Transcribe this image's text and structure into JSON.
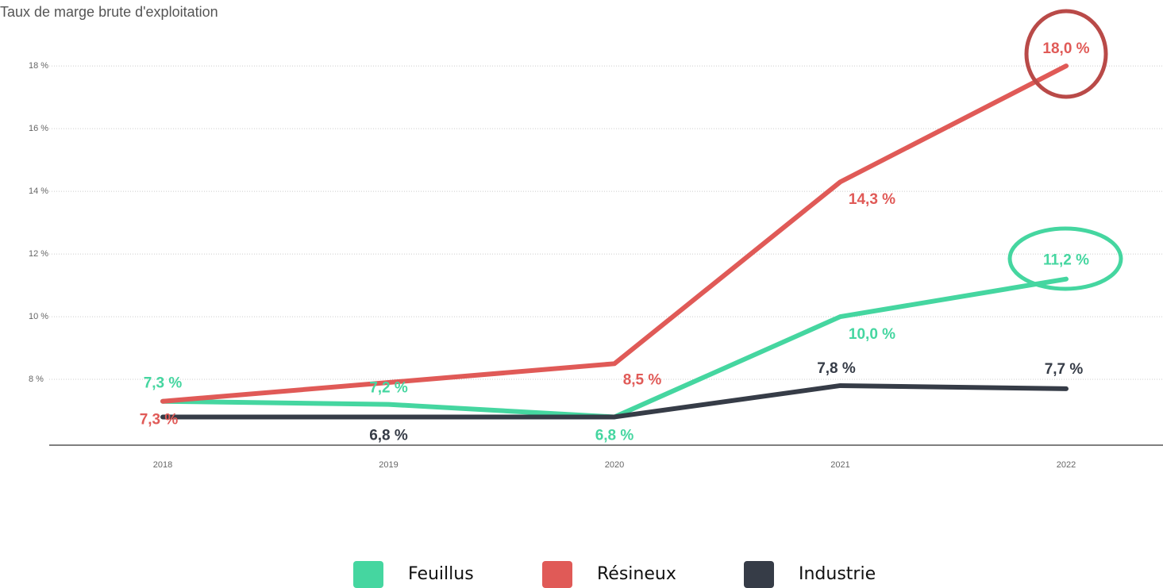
{
  "chart_data": {
    "type": "line",
    "title": "Taux de marge brute d'exploitation",
    "categories": [
      "2018",
      "2019",
      "2020",
      "2021",
      "2022"
    ],
    "series": [
      {
        "name": "Feuillus",
        "color": "#45d6a0",
        "values": [
          7.3,
          7.2,
          6.8,
          10.0,
          11.2
        ],
        "value_labels": [
          "7,3 %",
          "7,2 %",
          "6,8 %",
          "10,0 %",
          "11,2 %"
        ]
      },
      {
        "name": "Résineux",
        "color": "#e05a57",
        "values": [
          7.3,
          7.9,
          8.5,
          14.3,
          18.0
        ],
        "value_labels": [
          "7,3 %",
          null,
          "8,5 %",
          "14,3 %",
          "18,0 %"
        ]
      },
      {
        "name": "Industrie",
        "color": "#363c47",
        "values": [
          6.8,
          6.8,
          6.8,
          7.8,
          7.7
        ],
        "value_labels": [
          null,
          "6,8 %",
          null,
          "7,8 %",
          "7,7 %"
        ]
      }
    ],
    "ylim": [
      5.9,
      19
    ],
    "yticks": [
      {
        "value": 8,
        "label": "8 %"
      },
      {
        "value": 10,
        "label": "10 %"
      },
      {
        "value": 12,
        "label": "12 %"
      },
      {
        "value": 14,
        "label": "14 %"
      },
      {
        "value": 16,
        "label": "16 %"
      },
      {
        "value": 18,
        "label": "18 %"
      }
    ],
    "grid": true
  }
}
